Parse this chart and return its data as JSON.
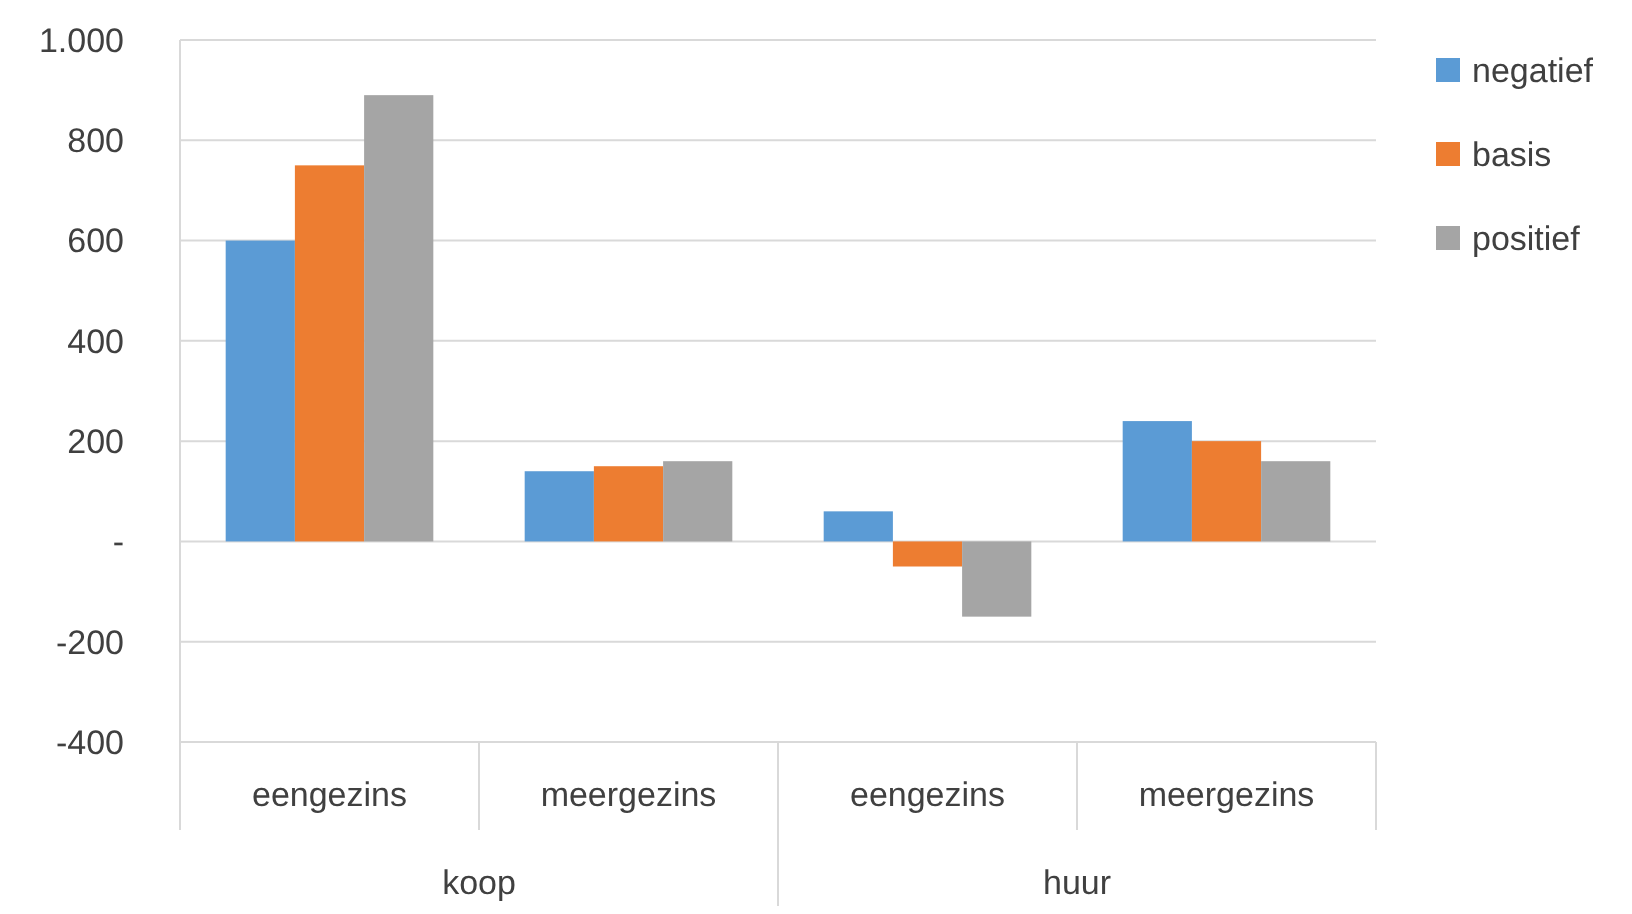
{
  "chart_data": {
    "type": "bar",
    "categories": [
      "eengezins",
      "meergezins",
      "eengezins",
      "meergezins"
    ],
    "annotations": [
      "koop",
      "huur"
    ],
    "series": [
      {
        "name": "negatief",
        "color": "#5b9bd5",
        "values": [
          600,
          140,
          60,
          240
        ]
      },
      {
        "name": "basis",
        "color": "#ed7d31",
        "values": [
          750,
          150,
          -50,
          200
        ]
      },
      {
        "name": "positief",
        "color": "#a5a5a5",
        "values": [
          890,
          160,
          -150,
          160
        ]
      }
    ],
    "ylim": [
      -400,
      1000
    ],
    "yticks": [
      -400,
      -200,
      {
        "value": 0,
        "label": "-"
      },
      200,
      400,
      600,
      800,
      {
        "value": 1000,
        "label": "1.000"
      }
    ],
    "grid": "y",
    "legend": "right"
  }
}
